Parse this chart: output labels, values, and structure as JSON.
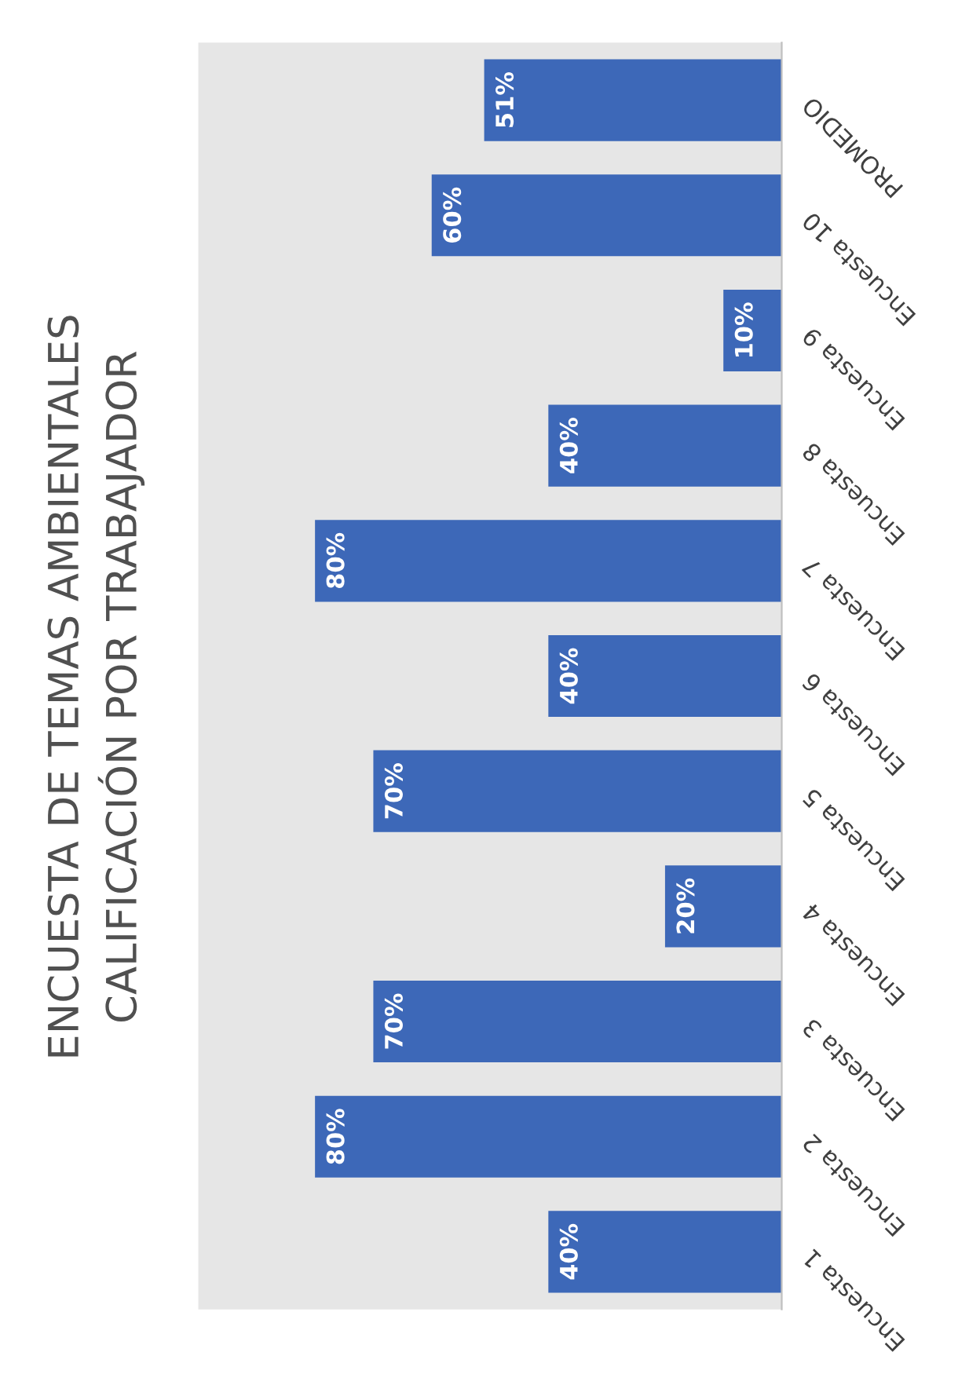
{
  "chart_data": {
    "type": "bar",
    "orientation": "horizontal",
    "title": "ENCUESTA DE TEMAS AMBIENTALES\nCALIFICACIÓN POR TRABAJADOR",
    "categories": [
      "PROMEDIO",
      "Encuesta 10",
      "Encuesta 9",
      "Encuesta 8",
      "Encuesta 7",
      "Encuesta 6",
      "Encuesta 5",
      "Encuesta 4",
      "Encuesta 3",
      "Encuesta 2",
      "Encuesta 1"
    ],
    "values": [
      51,
      60,
      10,
      40,
      80,
      40,
      70,
      20,
      70,
      80,
      40
    ],
    "value_labels": [
      "51%",
      "60%",
      "10%",
      "40%",
      "80%",
      "40%",
      "70%",
      "20%",
      "70%",
      "80%",
      "40%"
    ],
    "color": "#3d68b8",
    "xlim": [
      100,
      0
    ],
    "grid": false,
    "legend": false
  }
}
